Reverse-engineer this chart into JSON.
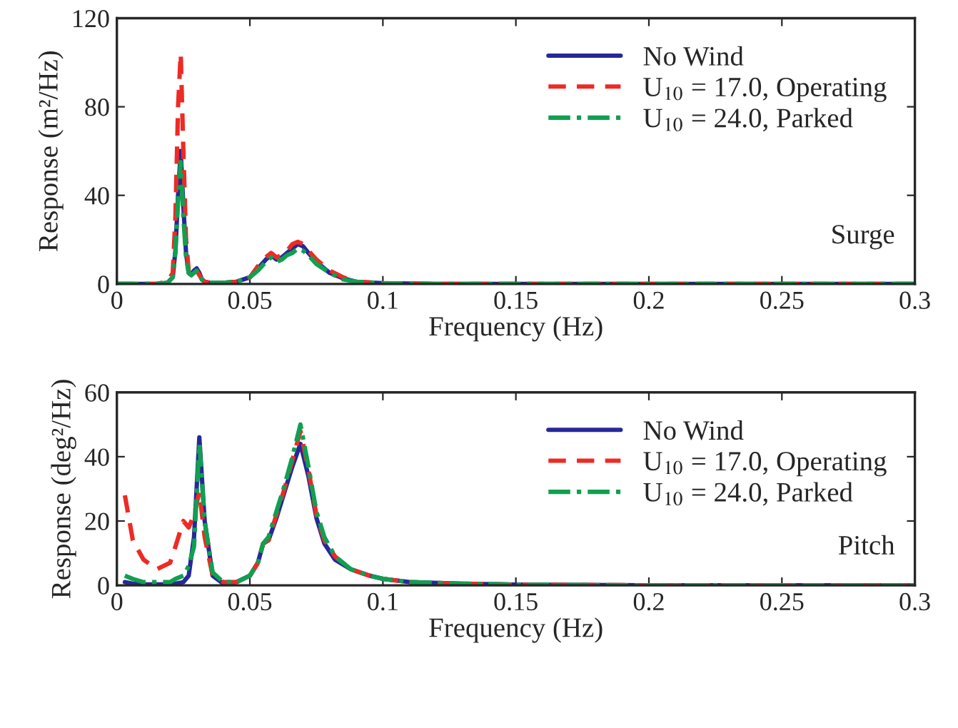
{
  "chart_data": [
    {
      "type": "line",
      "xlabel": "Frequency (Hz)",
      "ylabel": "Response (m²/Hz)",
      "xlim": [
        0,
        0.3
      ],
      "xticks": [
        0,
        0.05,
        0.1,
        0.15,
        0.2,
        0.25,
        0.3
      ],
      "ylim": [
        0,
        120
      ],
      "yticks": [
        0,
        40,
        80,
        120
      ],
      "grid": false,
      "legend": "top right",
      "annotations": [
        "Surge"
      ],
      "x": [
        0,
        0.015,
        0.019,
        0.021,
        0.022,
        0.023,
        0.024,
        0.025,
        0.026,
        0.027,
        0.028,
        0.029,
        0.03,
        0.031,
        0.032,
        0.033,
        0.035,
        0.04,
        0.045,
        0.05,
        0.053,
        0.056,
        0.058,
        0.06,
        0.062,
        0.064,
        0.066,
        0.068,
        0.07,
        0.072,
        0.075,
        0.08,
        0.085,
        0.09,
        0.1,
        0.12,
        0.15,
        0.2,
        0.3
      ],
      "series": [
        {
          "name": "No Wind",
          "color": "#26289a",
          "line_style": "solid",
          "values": [
            0,
            0,
            0.5,
            3,
            15,
            40,
            60,
            35,
            14,
            5,
            4,
            6,
            7,
            5,
            2,
            1,
            0.5,
            0.5,
            1,
            3,
            7,
            11,
            13,
            11,
            12,
            14,
            16,
            18,
            17,
            14,
            10,
            5,
            2.5,
            1,
            0.3,
            0,
            0,
            0,
            0
          ]
        },
        {
          "name": "U$_{10}$ = 17.0, Operating",
          "color": "#ee2a24",
          "line_style": "dashed",
          "values": [
            0,
            0,
            1,
            5,
            30,
            80,
            104,
            60,
            20,
            6,
            4,
            5,
            6,
            4,
            2,
            1,
            0.5,
            0.5,
            1,
            3,
            8,
            12,
            14,
            12,
            13,
            15,
            18,
            19,
            18,
            15,
            11,
            6,
            3,
            1,
            0.3,
            0,
            0,
            0,
            0
          ]
        },
        {
          "name": "U$_{10}$ = 24.0, Parked",
          "color": "#10a050",
          "line_style": "dashdot",
          "values": [
            0,
            0,
            0.5,
            3,
            14,
            38,
            55,
            30,
            12,
            5,
            4,
            5,
            6,
            4,
            2,
            1,
            0.5,
            0.5,
            1,
            3,
            6,
            10,
            12,
            10,
            11,
            13,
            14,
            16,
            15,
            13,
            9,
            5,
            2,
            1,
            0.3,
            0,
            0,
            0,
            0
          ]
        }
      ]
    },
    {
      "type": "line",
      "xlabel": "Frequency (Hz)",
      "ylabel": "Response (deg²/Hz)",
      "xlim": [
        0,
        0.3
      ],
      "xticks": [
        0,
        0.05,
        0.1,
        0.15,
        0.2,
        0.25,
        0.3
      ],
      "ylim": [
        0,
        60
      ],
      "yticks": [
        0,
        20,
        40,
        60
      ],
      "grid": false,
      "legend": "top right",
      "annotations": [
        "Pitch"
      ],
      "x": [
        0.003,
        0.006,
        0.01,
        0.015,
        0.02,
        0.022,
        0.025,
        0.027,
        0.029,
        0.031,
        0.033,
        0.036,
        0.04,
        0.045,
        0.05,
        0.053,
        0.055,
        0.057,
        0.06,
        0.063,
        0.066,
        0.069,
        0.072,
        0.075,
        0.078,
        0.082,
        0.088,
        0.095,
        0.1,
        0.11,
        0.13,
        0.15,
        0.2,
        0.3
      ],
      "series": [
        {
          "name": "No Wind",
          "color": "#26289a",
          "line_style": "solid",
          "values": [
            1,
            0.5,
            0.3,
            0.3,
            0.3,
            0.5,
            1,
            3,
            15,
            46,
            20,
            3,
            0.5,
            1,
            3,
            7,
            13,
            14,
            21,
            29,
            37,
            44,
            34,
            21,
            13,
            8,
            5,
            3,
            2,
            1,
            0.5,
            0.2,
            0,
            0
          ]
        },
        {
          "name": "U$_{10}$ = 17.0, Operating",
          "color": "#ee2a24",
          "line_style": "dashed",
          "values": [
            28,
            14,
            8,
            5,
            7,
            12,
            20,
            18,
            22,
            29,
            15,
            3,
            1,
            1,
            3,
            7,
            13,
            14,
            22,
            30,
            39,
            48,
            36,
            22,
            14,
            9,
            5,
            3,
            2,
            1,
            0.5,
            0.2,
            0,
            0
          ]
        },
        {
          "name": "U$_{10}$ = 24.0, Parked",
          "color": "#10a050",
          "line_style": "dashdot",
          "values": [
            3,
            2,
            1,
            1,
            1,
            2,
            3,
            6,
            12,
            44,
            20,
            4,
            1,
            1,
            3,
            7,
            13,
            15,
            23,
            31,
            40,
            50,
            37,
            23,
            15,
            9,
            5,
            3,
            2,
            1,
            0.5,
            0.2,
            0,
            0
          ]
        }
      ]
    }
  ]
}
